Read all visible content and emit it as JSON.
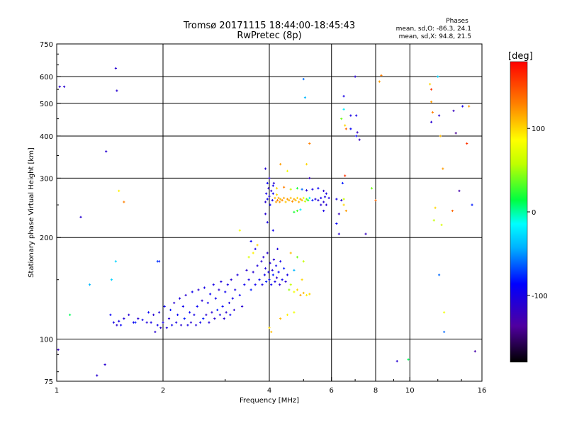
{
  "chart_data": {
    "type": "scatter",
    "title": "Tromsø 20171115 18:44:00-18:45:43",
    "subtitle": "RwPretec (8p)",
    "stats": {
      "title": "Phases",
      "line_o": "mean, sd,O: -86.3, 24.1",
      "line_x": "mean, sd,X:  94.8, 21.5"
    },
    "xlabel": "Frequency [MHz]",
    "ylabel": "Stationary phase Virtual Height [km]",
    "xscale": "log",
    "yscale": "log",
    "xlim": [
      1,
      16
    ],
    "ylim": [
      75,
      750
    ],
    "x_ticks": [
      "1",
      "2",
      "4",
      "6",
      "8",
      "10",
      "16"
    ],
    "y_ticks": [
      "75",
      "100",
      "200",
      "300",
      "400",
      "500",
      "600",
      "750"
    ],
    "colorbar": {
      "label": "[deg]",
      "range": [
        -180,
        180
      ],
      "ticks": [
        "100",
        "0",
        "-100"
      ]
    },
    "grid": true,
    "points": [
      [
        1.01,
        93,
        -120
      ],
      [
        1.02,
        560,
        -110
      ],
      [
        1.09,
        118,
        10
      ],
      [
        1.17,
        230,
        -110
      ],
      [
        1.3,
        78,
        -110
      ],
      [
        1.37,
        84,
        -110
      ],
      [
        1.42,
        118,
        -90
      ],
      [
        1.43,
        150,
        -30
      ],
      [
        1.45,
        112,
        -100
      ],
      [
        1.48,
        110,
        -110
      ],
      [
        1.5,
        113,
        -100
      ],
      [
        1.52,
        110,
        -90
      ],
      [
        1.55,
        115,
        -105
      ],
      [
        1.6,
        118,
        -110
      ],
      [
        1.65,
        112,
        -95
      ],
      [
        1.67,
        112,
        -80
      ],
      [
        1.7,
        115,
        -110
      ],
      [
        1.75,
        114,
        -95
      ],
      [
        1.8,
        112,
        -105
      ],
      [
        1.82,
        120,
        -90
      ],
      [
        1.85,
        112,
        -100
      ],
      [
        1.88,
        118,
        -110
      ],
      [
        1.9,
        105,
        -110
      ],
      [
        1.93,
        110,
        -95
      ],
      [
        1.95,
        120,
        -105
      ],
      [
        1.97,
        108,
        -110
      ],
      [
        2.0,
        112,
        -100
      ],
      [
        2.02,
        125,
        -90
      ],
      [
        2.05,
        108,
        -105
      ],
      [
        2.08,
        115,
        -110
      ],
      [
        2.1,
        122,
        -80
      ],
      [
        2.12,
        110,
        -95
      ],
      [
        2.15,
        128,
        -110
      ],
      [
        2.18,
        112,
        -100
      ],
      [
        2.2,
        118,
        -90
      ],
      [
        2.23,
        132,
        -105
      ],
      [
        2.25,
        110,
        -110
      ],
      [
        2.28,
        125,
        -95
      ],
      [
        2.3,
        115,
        -80
      ],
      [
        2.32,
        135,
        -110
      ],
      [
        2.35,
        110,
        -100
      ],
      [
        2.38,
        120,
        -90
      ],
      [
        2.4,
        112,
        -110
      ],
      [
        2.42,
        138,
        -95
      ],
      [
        2.45,
        118,
        -100
      ],
      [
        2.48,
        110,
        -105
      ],
      [
        2.5,
        125,
        -90
      ],
      [
        2.52,
        140,
        -110
      ],
      [
        2.55,
        112,
        -95
      ],
      [
        2.58,
        130,
        -110
      ],
      [
        2.6,
        115,
        -80
      ],
      [
        2.62,
        142,
        -100
      ],
      [
        2.65,
        118,
        -110
      ],
      [
        2.68,
        128,
        -95
      ],
      [
        2.7,
        112,
        -105
      ],
      [
        2.72,
        136,
        -90
      ],
      [
        2.75,
        120,
        -110
      ],
      [
        2.78,
        145,
        -100
      ],
      [
        2.8,
        115,
        -110
      ],
      [
        2.82,
        132,
        -95
      ],
      [
        2.85,
        122,
        -80
      ],
      [
        2.88,
        140,
        -110
      ],
      [
        2.9,
        118,
        -100
      ],
      [
        2.92,
        148,
        -105
      ],
      [
        2.95,
        125,
        -90
      ],
      [
        2.98,
        115,
        -110
      ],
      [
        3.0,
        138,
        -95
      ],
      [
        3.02,
        120,
        -110
      ],
      [
        3.05,
        145,
        -100
      ],
      [
        3.08,
        128,
        -105
      ],
      [
        3.1,
        118,
        -90
      ],
      [
        3.12,
        150,
        -110
      ],
      [
        3.15,
        132,
        -95
      ],
      [
        3.18,
        122,
        -110
      ],
      [
        3.2,
        140,
        -100
      ],
      [
        3.25,
        155,
        -105
      ],
      [
        3.3,
        135,
        -90
      ],
      [
        3.35,
        125,
        -110
      ],
      [
        3.4,
        145,
        -95
      ],
      [
        3.45,
        160,
        -110
      ],
      [
        3.5,
        150,
        -100
      ],
      [
        3.55,
        140,
        -80
      ],
      [
        3.6,
        158,
        -110
      ],
      [
        3.65,
        145,
        -95
      ],
      [
        3.7,
        165,
        -105
      ],
      [
        3.75,
        150,
        -90
      ],
      [
        3.8,
        170,
        -110
      ],
      [
        3.82,
        145,
        -100
      ],
      [
        3.85,
        175,
        -110
      ],
      [
        3.88,
        155,
        -95
      ],
      [
        3.9,
        162,
        -105
      ],
      [
        3.92,
        148,
        -80
      ],
      [
        3.95,
        180,
        -110
      ],
      [
        3.98,
        158,
        -100
      ],
      [
        4.0,
        150,
        -90
      ],
      [
        4.02,
        168,
        -110
      ],
      [
        4.05,
        145,
        -95
      ],
      [
        4.08,
        160,
        -105
      ],
      [
        4.1,
        155,
        -80
      ],
      [
        4.12,
        172,
        -110
      ],
      [
        4.15,
        148,
        -100
      ],
      [
        4.18,
        165,
        -95
      ],
      [
        4.2,
        152,
        -110
      ],
      [
        4.22,
        185,
        -105
      ],
      [
        4.25,
        158,
        -90
      ],
      [
        4.28,
        145,
        -110
      ],
      [
        4.3,
        170,
        -100
      ],
      [
        4.35,
        150,
        -95
      ],
      [
        4.4,
        162,
        -80
      ],
      [
        4.45,
        148,
        -110
      ],
      [
        4.5,
        155,
        -100
      ],
      [
        4.55,
        140,
        50
      ],
      [
        4.6,
        145,
        60
      ],
      [
        4.7,
        138,
        80
      ],
      [
        4.8,
        140,
        100
      ],
      [
        4.9,
        135,
        120
      ],
      [
        5.0,
        137,
        110
      ],
      [
        5.1,
        135,
        90
      ],
      [
        5.2,
        136,
        100
      ],
      [
        3.9,
        255,
        -110
      ],
      [
        3.92,
        270,
        -100
      ],
      [
        3.95,
        260,
        -95
      ],
      [
        3.98,
        280,
        -110
      ],
      [
        4.0,
        265,
        -105
      ],
      [
        4.02,
        250,
        -90
      ],
      [
        4.05,
        275,
        -110
      ],
      [
        4.08,
        258,
        -100
      ],
      [
        4.1,
        270,
        -95
      ],
      [
        4.12,
        290,
        -110
      ],
      [
        4.15,
        262,
        110
      ],
      [
        4.18,
        255,
        120
      ],
      [
        4.2,
        268,
        100
      ],
      [
        4.22,
        258,
        130
      ],
      [
        4.25,
        262,
        115
      ],
      [
        4.28,
        255,
        120
      ],
      [
        4.3,
        260,
        110
      ],
      [
        4.35,
        258,
        125
      ],
      [
        4.4,
        262,
        118
      ],
      [
        4.45,
        255,
        105
      ],
      [
        4.5,
        260,
        120
      ],
      [
        4.55,
        258,
        115
      ],
      [
        4.6,
        262,
        110
      ],
      [
        4.65,
        256,
        125
      ],
      [
        4.7,
        260,
        118
      ],
      [
        4.75,
        258,
        108
      ],
      [
        4.8,
        262,
        100
      ],
      [
        4.85,
        255,
        115
      ],
      [
        4.9,
        260,
        122
      ],
      [
        4.95,
        258,
        110
      ],
      [
        5.0,
        262,
        80
      ],
      [
        5.05,
        256,
        60
      ],
      [
        5.1,
        260,
        40
      ],
      [
        5.15,
        258,
        20
      ],
      [
        5.2,
        262,
        -20
      ],
      [
        5.3,
        258,
        -80
      ],
      [
        5.4,
        260,
        -100
      ],
      [
        5.5,
        258,
        -110
      ],
      [
        5.6,
        262,
        -95
      ],
      [
        5.7,
        255,
        -110
      ],
      [
        5.75,
        264,
        -100
      ],
      [
        5.8,
        270,
        -105
      ],
      [
        3.95,
        290,
        -90
      ],
      [
        4.0,
        300,
        -110
      ],
      [
        4.1,
        285,
        -95
      ],
      [
        4.2,
        280,
        100
      ],
      [
        4.4,
        282,
        130
      ],
      [
        4.6,
        278,
        60
      ],
      [
        4.8,
        280,
        20
      ],
      [
        4.95,
        278,
        -60
      ],
      [
        5.1,
        276,
        -110
      ],
      [
        5.3,
        278,
        -100
      ],
      [
        5.5,
        280,
        -90
      ],
      [
        5.7,
        275,
        -110
      ],
      [
        3.9,
        320,
        -110
      ],
      [
        4.3,
        330,
        120
      ],
      [
        4.5,
        315,
        80
      ],
      [
        5.2,
        300,
        -120
      ],
      [
        5.6,
        250,
        -110
      ],
      [
        5.7,
        240,
        -100
      ],
      [
        5.8,
        250,
        -110
      ],
      [
        5.9,
        262,
        -105
      ],
      [
        4.7,
        238,
        20
      ],
      [
        4.8,
        240,
        30
      ],
      [
        4.9,
        242,
        -20
      ],
      [
        6.2,
        260,
        -100
      ],
      [
        6.4,
        258,
        -110
      ],
      [
        6.5,
        260,
        60
      ],
      [
        6.5,
        250,
        100
      ],
      [
        6.6,
        240,
        120
      ],
      [
        6.55,
        305,
        160
      ],
      [
        6.3,
        235,
        -120
      ],
      [
        6.2,
        220,
        -90
      ],
      [
        6.3,
        205,
        -110
      ],
      [
        6.45,
        290,
        -80
      ],
      [
        6.5,
        480,
        -20
      ],
      [
        6.55,
        430,
        100
      ],
      [
        6.5,
        525,
        -100
      ],
      [
        6.6,
        420,
        140
      ],
      [
        6.4,
        450,
        40
      ],
      [
        7.0,
        600,
        -110
      ],
      [
        7.05,
        460,
        -100
      ],
      [
        7.1,
        410,
        -120
      ],
      [
        7.05,
        400,
        -90
      ],
      [
        7.5,
        205,
        -120
      ],
      [
        7.8,
        280,
        40
      ],
      [
        8.0,
        258,
        140
      ],
      [
        8.2,
        580,
        120
      ],
      [
        8.3,
        605,
        130
      ],
      [
        9.2,
        86,
        -110
      ],
      [
        9.9,
        87,
        10
      ],
      [
        11.4,
        570,
        100
      ],
      [
        11.5,
        550,
        160
      ],
      [
        11.5,
        505,
        120
      ],
      [
        11.6,
        470,
        130
      ],
      [
        11.5,
        440,
        -110
      ],
      [
        11.8,
        245,
        100
      ],
      [
        11.7,
        225,
        60
      ],
      [
        12.0,
        600,
        -30
      ],
      [
        12.1,
        460,
        -110
      ],
      [
        12.2,
        400,
        110
      ],
      [
        12.4,
        320,
        120
      ],
      [
        12.5,
        105,
        -60
      ],
      [
        12.5,
        120,
        80
      ],
      [
        13.3,
        475,
        -120
      ],
      [
        13.5,
        408,
        -140
      ],
      [
        13.8,
        275,
        -130
      ],
      [
        14.1,
        490,
        -100
      ],
      [
        14.7,
        490,
        120
      ],
      [
        14.5,
        380,
        160
      ],
      [
        15.0,
        250,
        -80
      ],
      [
        15.3,
        92,
        -130
      ],
      [
        12.1,
        155,
        -60
      ],
      [
        12.3,
        218,
        70
      ],
      [
        13.2,
        240,
        140
      ],
      [
        6.8,
        420,
        -90
      ],
      [
        6.8,
        460,
        -100
      ],
      [
        7.2,
        390,
        -120
      ],
      [
        1.05,
        560,
        -110
      ],
      [
        1.24,
        145,
        -40
      ],
      [
        1.38,
        360,
        -110
      ],
      [
        1.47,
        635,
        -110
      ],
      [
        1.48,
        545,
        -110
      ],
      [
        1.5,
        275,
        90
      ],
      [
        1.55,
        255,
        130
      ],
      [
        1.47,
        170,
        -30
      ],
      [
        1.93,
        170,
        -70
      ],
      [
        1.95,
        170,
        -80
      ],
      [
        5.0,
        590,
        -60
      ],
      [
        5.05,
        520,
        -40
      ],
      [
        5.2,
        380,
        130
      ],
      [
        5.1,
        330,
        100
      ],
      [
        4.7,
        120,
        80
      ],
      [
        4.5,
        118,
        90
      ],
      [
        4.3,
        115,
        110
      ],
      [
        4.05,
        105,
        110
      ],
      [
        4.0,
        108,
        100
      ],
      [
        3.9,
        235,
        -110
      ],
      [
        3.95,
        222,
        -100
      ],
      [
        4.1,
        210,
        -95
      ],
      [
        4.6,
        180,
        110
      ],
      [
        4.8,
        175,
        40
      ],
      [
        5.0,
        170,
        60
      ],
      [
        4.95,
        150,
        100
      ],
      [
        4.7,
        160,
        -40
      ],
      [
        3.5,
        175,
        70
      ],
      [
        3.6,
        180,
        90
      ],
      [
        3.7,
        190,
        100
      ],
      [
        3.3,
        210,
        80
      ],
      [
        3.55,
        195,
        -90
      ],
      [
        3.65,
        185,
        -100
      ]
    ]
  }
}
